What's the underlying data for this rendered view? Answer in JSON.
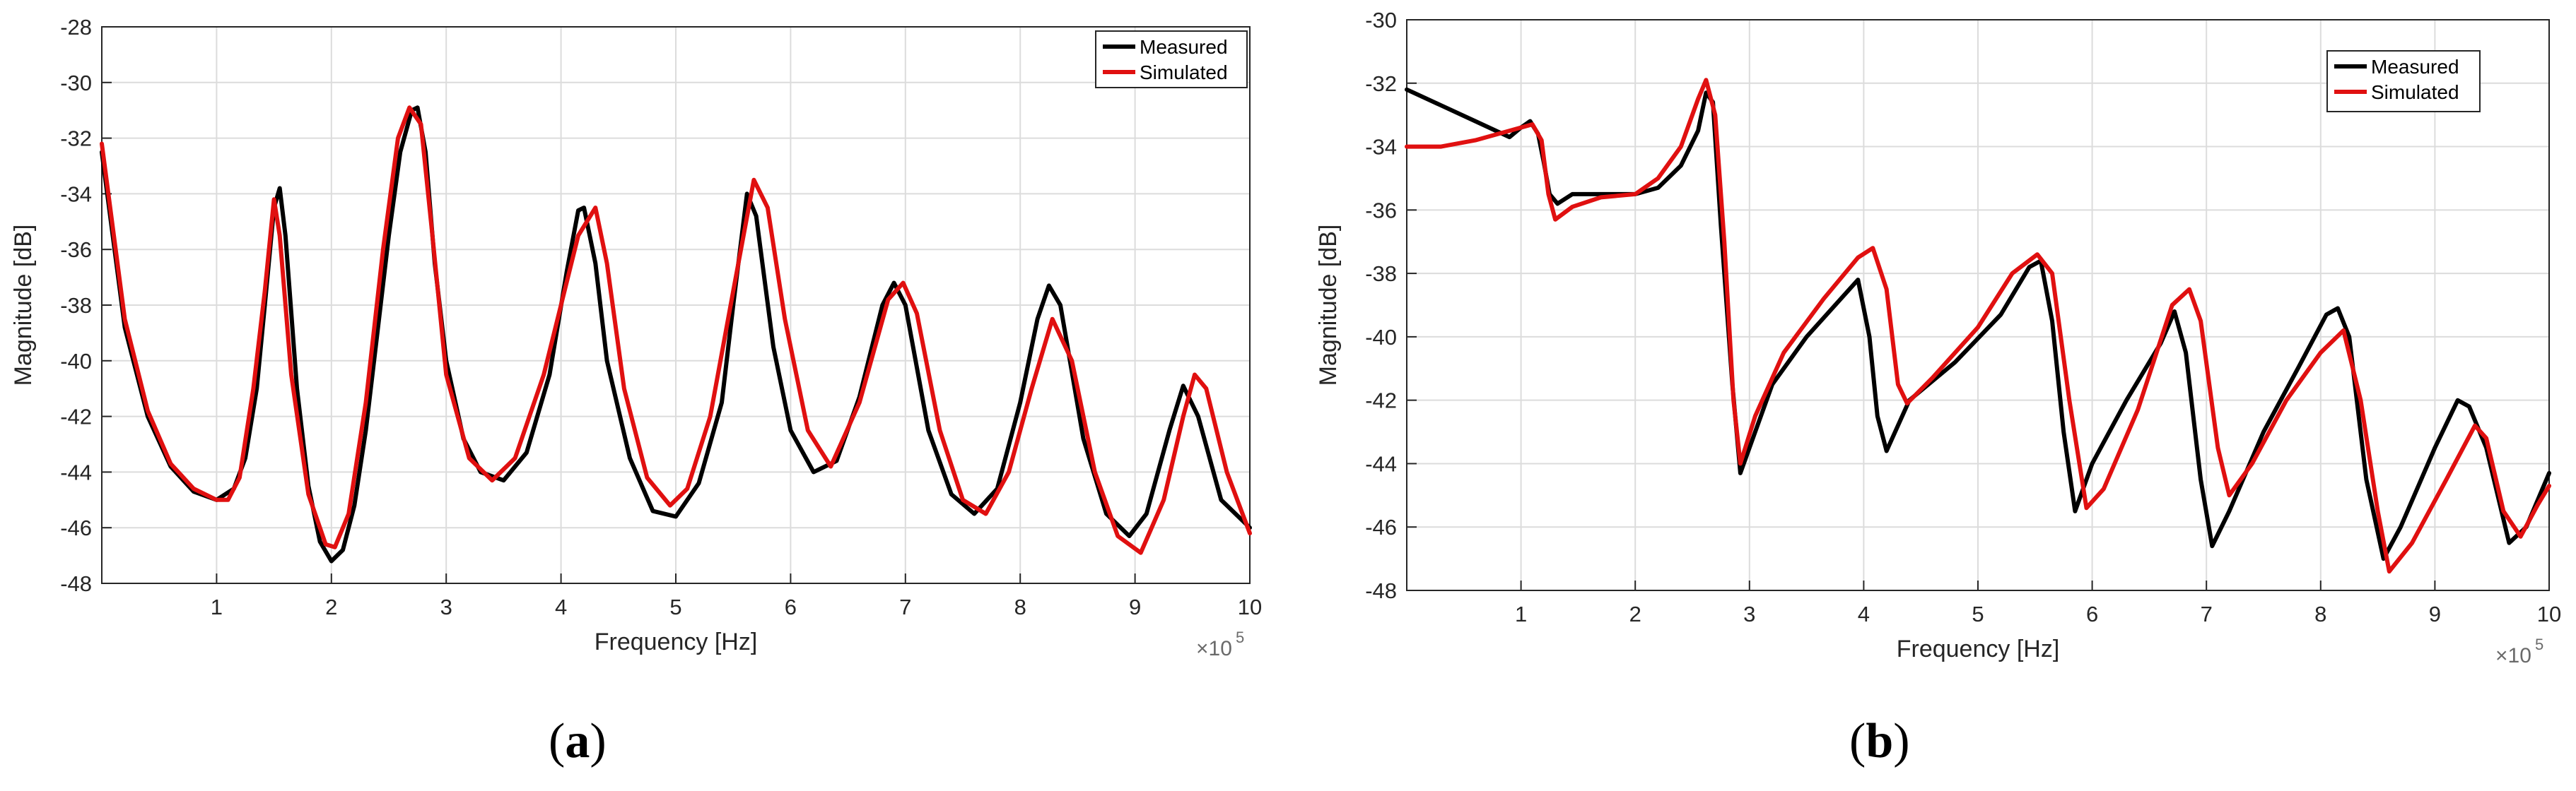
{
  "figure": {
    "panels": [
      {
        "caption": "(a)",
        "caption_bold": "a"
      },
      {
        "caption": "(b)",
        "caption_bold": "b"
      }
    ]
  },
  "colors": {
    "measured": "#000000",
    "simulated": "#e01010",
    "grid": "#dcdcdc",
    "axis": "#262626",
    "tick_text": "#262626"
  },
  "chart_data": [
    {
      "type": "line",
      "panel": "a",
      "title": "",
      "xlabel": "Frequency [Hz]",
      "ylabel": "Magnitude [dB]",
      "x_exponent_label": "×10",
      "x_exponent": "5",
      "xlim": [
        0,
        10
      ],
      "ylim": [
        -48,
        -28
      ],
      "xticks": [
        1,
        2,
        3,
        4,
        5,
        6,
        7,
        8,
        9,
        10
      ],
      "yticks": [
        -48,
        -46,
        -44,
        -42,
        -40,
        -38,
        -36,
        -34,
        -32,
        -30,
        -28
      ],
      "grid": true,
      "legend": {
        "position": "top-right"
      },
      "series": [
        {
          "name": "Measured",
          "color_key": "measured",
          "points": [
            [
              0.0,
              -32.5
            ],
            [
              0.2,
              -38.8
            ],
            [
              0.4,
              -42.0
            ],
            [
              0.6,
              -43.8
            ],
            [
              0.8,
              -44.7
            ],
            [
              1.0,
              -45.0
            ],
            [
              1.15,
              -44.6
            ],
            [
              1.25,
              -43.5
            ],
            [
              1.35,
              -41.0
            ],
            [
              1.42,
              -38.0
            ],
            [
              1.5,
              -34.5
            ],
            [
              1.55,
              -33.8
            ],
            [
              1.6,
              -35.5
            ],
            [
              1.7,
              -41.0
            ],
            [
              1.8,
              -44.5
            ],
            [
              1.9,
              -46.5
            ],
            [
              2.0,
              -47.2
            ],
            [
              2.1,
              -46.8
            ],
            [
              2.2,
              -45.2
            ],
            [
              2.3,
              -42.5
            ],
            [
              2.4,
              -39.0
            ],
            [
              2.5,
              -35.5
            ],
            [
              2.6,
              -32.5
            ],
            [
              2.7,
              -31.0
            ],
            [
              2.75,
              -30.9
            ],
            [
              2.82,
              -32.5
            ],
            [
              2.9,
              -36.5
            ],
            [
              3.0,
              -40.0
            ],
            [
              3.15,
              -42.8
            ],
            [
              3.3,
              -44.0
            ],
            [
              3.5,
              -44.3
            ],
            [
              3.7,
              -43.3
            ],
            [
              3.9,
              -40.5
            ],
            [
              4.05,
              -36.8
            ],
            [
              4.15,
              -34.6
            ],
            [
              4.2,
              -34.5
            ],
            [
              4.3,
              -36.5
            ],
            [
              4.4,
              -40.0
            ],
            [
              4.6,
              -43.5
            ],
            [
              4.8,
              -45.4
            ],
            [
              5.0,
              -45.6
            ],
            [
              5.2,
              -44.4
            ],
            [
              5.4,
              -41.5
            ],
            [
              5.5,
              -38.0
            ],
            [
              5.62,
              -34.0
            ],
            [
              5.7,
              -34.8
            ],
            [
              5.85,
              -39.5
            ],
            [
              6.0,
              -42.5
            ],
            [
              6.2,
              -44.0
            ],
            [
              6.4,
              -43.6
            ],
            [
              6.6,
              -41.3
            ],
            [
              6.8,
              -38.0
            ],
            [
              6.9,
              -37.2
            ],
            [
              7.0,
              -38.0
            ],
            [
              7.2,
              -42.5
            ],
            [
              7.4,
              -44.8
            ],
            [
              7.6,
              -45.5
            ],
            [
              7.8,
              -44.6
            ],
            [
              8.0,
              -41.5
            ],
            [
              8.15,
              -38.5
            ],
            [
              8.25,
              -37.3
            ],
            [
              8.35,
              -38.0
            ],
            [
              8.55,
              -42.8
            ],
            [
              8.75,
              -45.5
            ],
            [
              8.95,
              -46.3
            ],
            [
              9.1,
              -45.5
            ],
            [
              9.3,
              -42.5
            ],
            [
              9.42,
              -40.9
            ],
            [
              9.55,
              -42.0
            ],
            [
              9.75,
              -45.0
            ],
            [
              10.0,
              -46.0
            ]
          ]
        },
        {
          "name": "Simulated",
          "color_key": "simulated",
          "points": [
            [
              0.0,
              -32.2
            ],
            [
              0.2,
              -38.5
            ],
            [
              0.4,
              -41.8
            ],
            [
              0.6,
              -43.7
            ],
            [
              0.8,
              -44.6
            ],
            [
              1.0,
              -45.0
            ],
            [
              1.1,
              -45.0
            ],
            [
              1.2,
              -44.2
            ],
            [
              1.32,
              -41.0
            ],
            [
              1.42,
              -37.5
            ],
            [
              1.5,
              -34.2
            ],
            [
              1.55,
              -35.5
            ],
            [
              1.65,
              -40.5
            ],
            [
              1.8,
              -44.8
            ],
            [
              1.95,
              -46.6
            ],
            [
              2.03,
              -46.7
            ],
            [
              2.15,
              -45.5
            ],
            [
              2.3,
              -41.5
            ],
            [
              2.45,
              -36.0
            ],
            [
              2.58,
              -32.0
            ],
            [
              2.68,
              -30.9
            ],
            [
              2.78,
              -31.5
            ],
            [
              2.88,
              -35.5
            ],
            [
              3.0,
              -40.5
            ],
            [
              3.2,
              -43.5
            ],
            [
              3.4,
              -44.3
            ],
            [
              3.6,
              -43.5
            ],
            [
              3.85,
              -40.5
            ],
            [
              4.0,
              -38.0
            ],
            [
              4.15,
              -35.5
            ],
            [
              4.3,
              -34.5
            ],
            [
              4.4,
              -36.5
            ],
            [
              4.55,
              -41.0
            ],
            [
              4.75,
              -44.2
            ],
            [
              4.95,
              -45.2
            ],
            [
              5.1,
              -44.6
            ],
            [
              5.3,
              -42.0
            ],
            [
              5.5,
              -37.5
            ],
            [
              5.68,
              -33.5
            ],
            [
              5.8,
              -34.5
            ],
            [
              5.95,
              -38.5
            ],
            [
              6.15,
              -42.5
            ],
            [
              6.35,
              -43.8
            ],
            [
              6.6,
              -41.5
            ],
            [
              6.85,
              -37.8
            ],
            [
              6.98,
              -37.2
            ],
            [
              7.1,
              -38.3
            ],
            [
              7.3,
              -42.5
            ],
            [
              7.5,
              -45.0
            ],
            [
              7.7,
              -45.5
            ],
            [
              7.9,
              -44.0
            ],
            [
              8.1,
              -41.0
            ],
            [
              8.28,
              -38.5
            ],
            [
              8.45,
              -40.0
            ],
            [
              8.65,
              -44.0
            ],
            [
              8.85,
              -46.3
            ],
            [
              9.05,
              -46.9
            ],
            [
              9.25,
              -45.0
            ],
            [
              9.42,
              -42.0
            ],
            [
              9.52,
              -40.5
            ],
            [
              9.62,
              -41.0
            ],
            [
              9.8,
              -44.0
            ],
            [
              10.0,
              -46.2
            ]
          ]
        }
      ]
    },
    {
      "type": "line",
      "panel": "b",
      "title": "",
      "xlabel": "Frequency [Hz]",
      "ylabel": "Magnitude [dB]",
      "x_exponent_label": "×10",
      "x_exponent": "5",
      "xlim": [
        0,
        10
      ],
      "ylim": [
        -48,
        -30
      ],
      "xticks": [
        1,
        2,
        3,
        4,
        5,
        6,
        7,
        8,
        9,
        10
      ],
      "yticks": [
        -48,
        -46,
        -44,
        -42,
        -40,
        -38,
        -36,
        -34,
        -32,
        -30
      ],
      "grid": true,
      "legend": {
        "position": "top-right"
      },
      "series": [
        {
          "name": "Measured",
          "color_key": "measured",
          "points": [
            [
              0.0,
              -32.2
            ],
            [
              0.3,
              -32.7
            ],
            [
              0.6,
              -33.2
            ],
            [
              0.9,
              -33.7
            ],
            [
              1.0,
              -33.4
            ],
            [
              1.08,
              -33.2
            ],
            [
              1.15,
              -33.6
            ],
            [
              1.2,
              -34.5
            ],
            [
              1.25,
              -35.5
            ],
            [
              1.32,
              -35.8
            ],
            [
              1.45,
              -35.5
            ],
            [
              1.7,
              -35.5
            ],
            [
              2.0,
              -35.5
            ],
            [
              2.2,
              -35.3
            ],
            [
              2.4,
              -34.6
            ],
            [
              2.55,
              -33.5
            ],
            [
              2.62,
              -32.3
            ],
            [
              2.68,
              -32.6
            ],
            [
              2.75,
              -36.5
            ],
            [
              2.85,
              -41.5
            ],
            [
              2.92,
              -44.3
            ],
            [
              3.0,
              -43.5
            ],
            [
              3.2,
              -41.5
            ],
            [
              3.5,
              -40.0
            ],
            [
              3.8,
              -38.8
            ],
            [
              3.95,
              -38.2
            ],
            [
              4.05,
              -40.0
            ],
            [
              4.12,
              -42.5
            ],
            [
              4.2,
              -43.6
            ],
            [
              4.4,
              -42.0
            ],
            [
              4.8,
              -40.8
            ],
            [
              5.2,
              -39.3
            ],
            [
              5.45,
              -37.8
            ],
            [
              5.55,
              -37.6
            ],
            [
              5.65,
              -39.5
            ],
            [
              5.75,
              -43.0
            ],
            [
              5.85,
              -45.5
            ],
            [
              6.0,
              -44.0
            ],
            [
              6.3,
              -42.0
            ],
            [
              6.6,
              -40.2
            ],
            [
              6.72,
              -39.2
            ],
            [
              6.82,
              -40.5
            ],
            [
              6.95,
              -44.5
            ],
            [
              7.05,
              -46.6
            ],
            [
              7.2,
              -45.5
            ],
            [
              7.5,
              -43.0
            ],
            [
              7.8,
              -41.0
            ],
            [
              8.05,
              -39.3
            ],
            [
              8.15,
              -39.1
            ],
            [
              8.25,
              -40.0
            ],
            [
              8.4,
              -44.5
            ],
            [
              8.55,
              -47.0
            ],
            [
              8.7,
              -46.0
            ],
            [
              9.0,
              -43.5
            ],
            [
              9.2,
              -42.0
            ],
            [
              9.3,
              -42.2
            ],
            [
              9.45,
              -43.5
            ],
            [
              9.65,
              -46.5
            ],
            [
              9.8,
              -46.0
            ],
            [
              10.0,
              -44.3
            ]
          ]
        },
        {
          "name": "Simulated",
          "color_key": "simulated",
          "points": [
            [
              0.0,
              -34.0
            ],
            [
              0.3,
              -34.0
            ],
            [
              0.6,
              -33.8
            ],
            [
              0.9,
              -33.5
            ],
            [
              1.1,
              -33.3
            ],
            [
              1.18,
              -33.8
            ],
            [
              1.24,
              -35.5
            ],
            [
              1.3,
              -36.3
            ],
            [
              1.45,
              -35.9
            ],
            [
              1.7,
              -35.6
            ],
            [
              2.0,
              -35.5
            ],
            [
              2.2,
              -35.0
            ],
            [
              2.4,
              -34.0
            ],
            [
              2.55,
              -32.5
            ],
            [
              2.62,
              -31.9
            ],
            [
              2.7,
              -33.0
            ],
            [
              2.78,
              -37.0
            ],
            [
              2.86,
              -42.0
            ],
            [
              2.92,
              -44.0
            ],
            [
              3.05,
              -42.5
            ],
            [
              3.3,
              -40.5
            ],
            [
              3.65,
              -38.8
            ],
            [
              3.95,
              -37.5
            ],
            [
              4.08,
              -37.2
            ],
            [
              4.2,
              -38.5
            ],
            [
              4.3,
              -41.5
            ],
            [
              4.38,
              -42.1
            ],
            [
              4.6,
              -41.3
            ],
            [
              5.0,
              -39.7
            ],
            [
              5.3,
              -38.0
            ],
            [
              5.52,
              -37.4
            ],
            [
              5.65,
              -38.0
            ],
            [
              5.8,
              -42.0
            ],
            [
              5.95,
              -45.4
            ],
            [
              6.1,
              -44.8
            ],
            [
              6.4,
              -42.3
            ],
            [
              6.7,
              -39.0
            ],
            [
              6.85,
              -38.5
            ],
            [
              6.95,
              -39.5
            ],
            [
              7.1,
              -43.5
            ],
            [
              7.2,
              -45.0
            ],
            [
              7.4,
              -44.0
            ],
            [
              7.7,
              -42.0
            ],
            [
              8.0,
              -40.5
            ],
            [
              8.2,
              -39.8
            ],
            [
              8.35,
              -42.0
            ],
            [
              8.5,
              -45.5
            ],
            [
              8.6,
              -47.4
            ],
            [
              8.8,
              -46.5
            ],
            [
              9.1,
              -44.5
            ],
            [
              9.35,
              -42.8
            ],
            [
              9.45,
              -43.2
            ],
            [
              9.6,
              -45.5
            ],
            [
              9.75,
              -46.3
            ],
            [
              9.9,
              -45.3
            ],
            [
              10.0,
              -44.7
            ]
          ]
        }
      ]
    }
  ]
}
